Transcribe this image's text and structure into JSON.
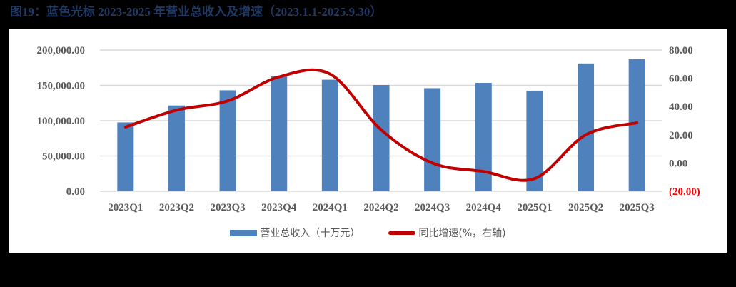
{
  "title": "图19：蓝色光标 2023-2025 年营业总收入及增速（2023.1.1-2025.9.30）",
  "colors": {
    "bar": "#4f81bd",
    "line": "#c00000",
    "negative_label": "#ff0000",
    "title": "#1f3864"
  },
  "legend": {
    "bar_label": "营业总收入（十万元）",
    "line_label": "同比增速(%，右轴)"
  },
  "chart_data": {
    "type": "bar+line",
    "title": "图19：蓝色光标 2023-2025 年营业总收入及增速（2023.1.1-2025.9.30）",
    "categories": [
      "2023Q1",
      "2023Q2",
      "2023Q3",
      "2023Q4",
      "2024Q1",
      "2024Q2",
      "2024Q3",
      "2024Q4",
      "2025Q1",
      "2025Q2",
      "2025Q3"
    ],
    "series": [
      {
        "name": "营业总收入（十万元）",
        "type": "bar",
        "axis": "left",
        "values": [
          97500,
          121500,
          143000,
          163000,
          158000,
          150500,
          146000,
          153500,
          142500,
          181000,
          187000
        ]
      },
      {
        "name": "同比增速(%，右轴)",
        "type": "line",
        "axis": "right",
        "smooth": true,
        "values": [
          25.5,
          37.5,
          44.0,
          61.0,
          63.0,
          23.5,
          0.0,
          -6.0,
          -11.0,
          20.0,
          28.5
        ]
      }
    ],
    "left_axis": {
      "ticks": [
        "200,000.00",
        "150,000.00",
        "100,000.00",
        "50,000.00",
        "0.00"
      ],
      "ylim": [
        0,
        200000
      ]
    },
    "right_axis": {
      "ticks": [
        "80.00",
        "60.00",
        "40.00",
        "20.00",
        "0.00",
        "(20.00)"
      ],
      "ylim": [
        -20,
        80
      ]
    },
    "grid": true,
    "legend_position": "bottom"
  }
}
